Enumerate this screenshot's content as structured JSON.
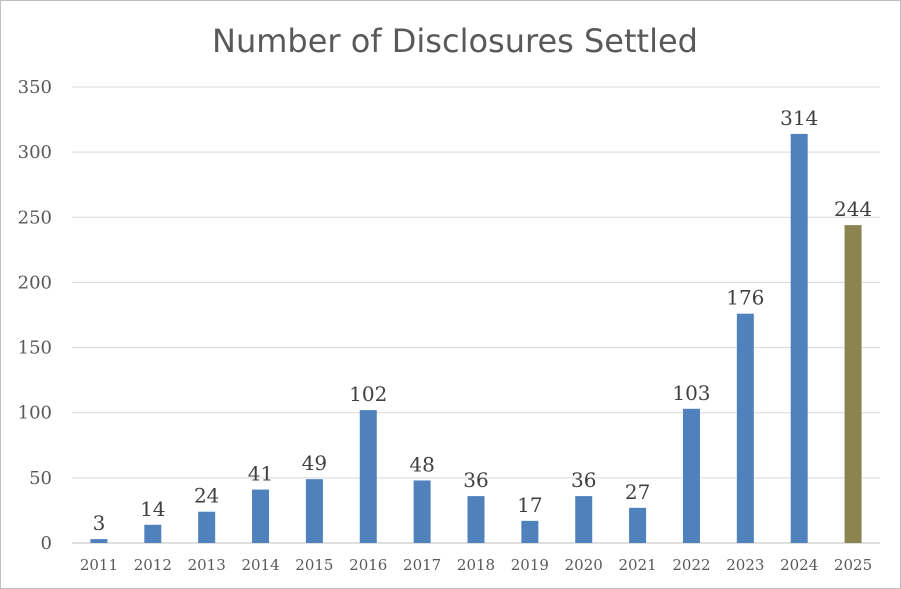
{
  "chart_data": {
    "type": "bar",
    "title": "Number of Disclosures Settled",
    "xlabel": "",
    "ylabel": "",
    "ylim": [
      0,
      350
    ],
    "yticks": [
      0,
      50,
      100,
      150,
      200,
      250,
      300,
      350
    ],
    "grid": true,
    "legend": "none",
    "categories": [
      "2011",
      "2012",
      "2013",
      "2014",
      "2015",
      "2016",
      "2017",
      "2018",
      "2019",
      "2020",
      "2021",
      "2022",
      "2023",
      "2024",
      "2025"
    ],
    "values": [
      3,
      14,
      24,
      41,
      49,
      102,
      48,
      36,
      17,
      36,
      27,
      103,
      176,
      314,
      244
    ],
    "colors": [
      "#4f81bd",
      "#4f81bd",
      "#4f81bd",
      "#4f81bd",
      "#4f81bd",
      "#4f81bd",
      "#4f81bd",
      "#4f81bd",
      "#4f81bd",
      "#4f81bd",
      "#4f81bd",
      "#4f81bd",
      "#4f81bd",
      "#4f81bd",
      "#8c8450"
    ]
  }
}
